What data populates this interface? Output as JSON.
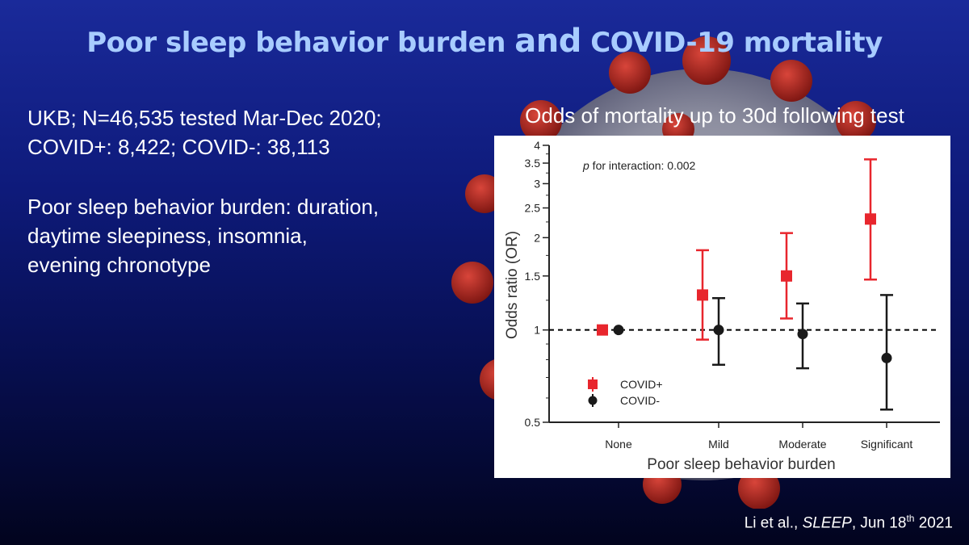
{
  "slide": {
    "title_part1": "Poor sleep behavior burden",
    "title_part2": "and",
    "title_part3": "COVID-19 mortality",
    "study_line1": "UKB; N=46,535 tested Mar-Dec 2020;",
    "study_line2": "COVID+: 8,422; COVID-: 38,113",
    "burden_line1": "Poor sleep behavior burden: duration,",
    "burden_line2": "daytime sleepiness, insomnia,",
    "burden_line3": "evening chronotype",
    "chart_heading": "Odds of mortality up to 30d following test",
    "citation_authors": "Li et al., ",
    "citation_journal": "SLEEP",
    "citation_date_pre": ", Jun 18",
    "citation_date_sup": "th",
    "citation_date_post": " 2021"
  },
  "chart_data": {
    "type": "scatter",
    "subtype": "odds-ratio-with-confidence-intervals",
    "categories": [
      "None",
      "Mild",
      "Moderate",
      "Significant"
    ],
    "xlabel": "Poor sleep behavior burden",
    "ylabel": "Odds ratio (OR)",
    "y_scale": "log",
    "ylim": [
      0.5,
      4
    ],
    "yticks": [
      0.5,
      1,
      1.5,
      2,
      2.5,
      3,
      3.5,
      4
    ],
    "ytick_labels": [
      "0.5",
      "1",
      "1.5",
      "2",
      "2.5",
      "3",
      "3.5",
      "4"
    ],
    "reference_line": 1,
    "annotation_italic": "p",
    "annotation_rest": " for interaction: 0.002",
    "legend_position": "bottom-left",
    "series": [
      {
        "name": "COVID+",
        "marker": "square",
        "color": "#e8262d",
        "values": [
          1.0,
          1.3,
          1.5,
          2.3
        ],
        "ci_lower": [
          null,
          0.93,
          1.09,
          1.46
        ],
        "ci_upper": [
          null,
          1.82,
          2.07,
          3.6
        ]
      },
      {
        "name": "COVID-",
        "marker": "circle",
        "color": "#1a1a1a",
        "values": [
          1.0,
          1.0,
          0.97,
          0.81
        ],
        "ci_lower": [
          null,
          0.77,
          0.75,
          0.55
        ],
        "ci_upper": [
          null,
          1.27,
          1.22,
          1.3
        ]
      }
    ]
  }
}
